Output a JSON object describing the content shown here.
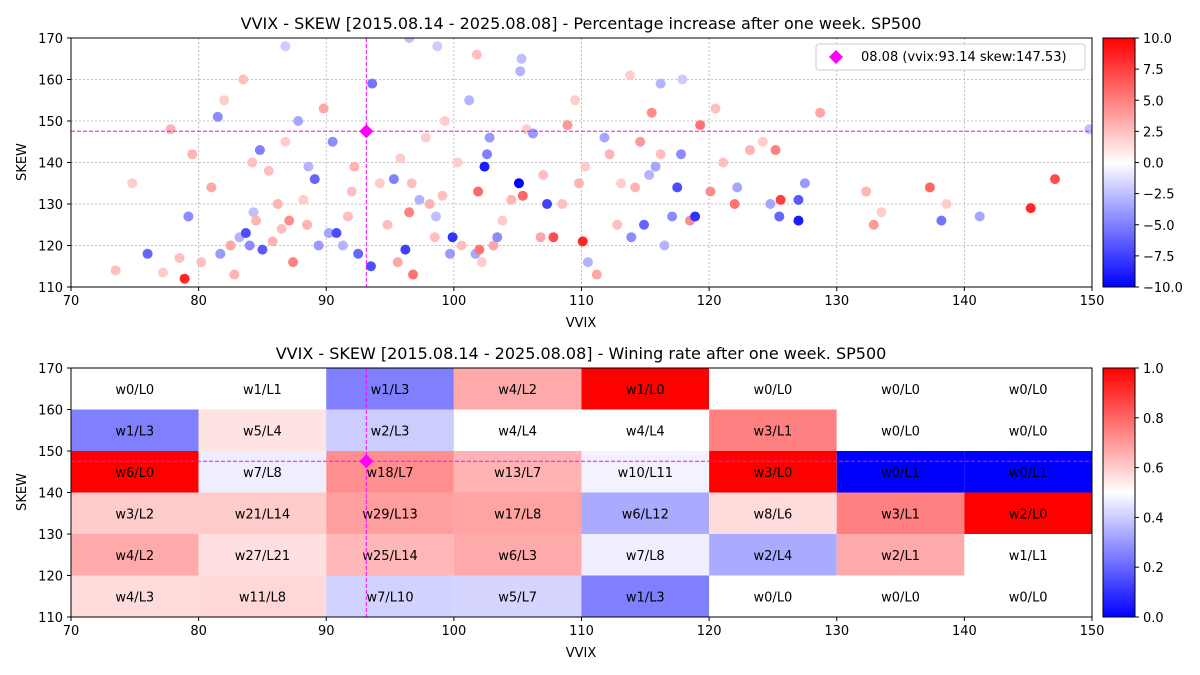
{
  "chart_data": [
    {
      "type": "scatter",
      "title": "VVIX - SKEW [2015.08.14 - 2025.08.08]  - Percentage increase after one week. SP500",
      "xlabel": "VVIX",
      "ylabel": "SKEW",
      "xlim": [
        70,
        150
      ],
      "ylim": [
        110,
        170
      ],
      "x_ticks": [
        70,
        80,
        90,
        100,
        110,
        120,
        130,
        140,
        150
      ],
      "y_ticks": [
        110,
        120,
        130,
        140,
        150,
        160,
        170
      ],
      "grid": true,
      "legend": {
        "position": "top-right",
        "label": "08.08 (vvix:93.14 skew:147.53)"
      },
      "current_point": {
        "x": 93.14,
        "y": 147.53,
        "color": "#ff00ff",
        "marker": "diamond"
      },
      "colorbar": {
        "min": -10,
        "max": 10,
        "cmap": "bwr",
        "ticks": [
          "10.0",
          "7.5",
          "5.0",
          "2.5",
          "0.0",
          "−2.5",
          "−5.0",
          "−7.5",
          "−10.0"
        ]
      },
      "points": [
        [
          73.5,
          114,
          2.5
        ],
        [
          74.8,
          135,
          2.0
        ],
        [
          76,
          118,
          -6.0
        ],
        [
          77.2,
          113.5,
          2.0
        ],
        [
          77.8,
          148,
          3.0
        ],
        [
          78.5,
          117,
          2.5
        ],
        [
          78.9,
          112,
          8.5
        ],
        [
          79.2,
          127,
          -4.5
        ],
        [
          79.5,
          142,
          3.0
        ],
        [
          80.2,
          116,
          2.5
        ],
        [
          81,
          134,
          3.5
        ],
        [
          81.5,
          151,
          -4.5
        ],
        [
          81.7,
          118,
          -4.0
        ],
        [
          82,
          155,
          2.0
        ],
        [
          82.5,
          120,
          3.5
        ],
        [
          82.8,
          113,
          3.0
        ],
        [
          83.2,
          122,
          -3.0
        ],
        [
          83.5,
          160,
          2.5
        ],
        [
          83.7,
          123,
          -7.0
        ],
        [
          84,
          120,
          -4.5
        ],
        [
          84.3,
          128,
          -2.5
        ],
        [
          84.5,
          126,
          3.0
        ],
        [
          84.8,
          143,
          -5.0
        ],
        [
          85,
          119,
          -6.5
        ],
        [
          85.5,
          138,
          2.5
        ],
        [
          85.8,
          121,
          3.0
        ],
        [
          86.2,
          130,
          3.0
        ],
        [
          86.5,
          124,
          2.5
        ],
        [
          86.8,
          145,
          2.0
        ],
        [
          87.1,
          126,
          4.5
        ],
        [
          87.4,
          116,
          5.0
        ],
        [
          87.8,
          150,
          -3.5
        ],
        [
          88.2,
          131,
          2.0
        ],
        [
          88.6,
          139,
          -3.0
        ],
        [
          89.1,
          136,
          -6.0
        ],
        [
          89.4,
          120,
          -4.0
        ],
        [
          89.8,
          153,
          3.5
        ],
        [
          90.2,
          123,
          -3.5
        ],
        [
          90.5,
          145,
          -4.5
        ],
        [
          90.8,
          123,
          -7.0
        ],
        [
          91.3,
          120,
          -3.0
        ],
        [
          91.7,
          127,
          2.5
        ],
        [
          92.2,
          139,
          3.0
        ],
        [
          92.5,
          118,
          -6.0
        ],
        [
          93.5,
          115,
          -7.0
        ],
        [
          93.6,
          159,
          -5.5
        ],
        [
          94.2,
          135,
          2.0
        ],
        [
          94.8,
          125,
          2.5
        ],
        [
          95.3,
          136,
          -5.0
        ],
        [
          95.6,
          116,
          3.5
        ],
        [
          96.2,
          119,
          -7.5
        ],
        [
          96.5,
          128,
          5.0
        ],
        [
          96.7,
          135,
          2.5
        ],
        [
          96.8,
          113,
          5.5
        ],
        [
          97.3,
          131,
          -3.0
        ],
        [
          97.8,
          146,
          2.0
        ],
        [
          98.1,
          130,
          3.0
        ],
        [
          98.6,
          127,
          -2.5
        ],
        [
          99.1,
          132,
          2.5
        ],
        [
          99.3,
          150,
          2.0
        ],
        [
          99.7,
          118,
          -4.0
        ],
        [
          99.9,
          122,
          -8.0
        ],
        [
          100.3,
          140,
          2.0
        ],
        [
          100.6,
          120,
          2.5
        ],
        [
          101.2,
          155,
          -3.0
        ],
        [
          101.7,
          118,
          -3.5
        ],
        [
          101.9,
          133,
          6.0
        ],
        [
          102,
          119,
          5.5
        ],
        [
          102.2,
          116,
          2.0
        ],
        [
          102.4,
          139,
          -9.0
        ],
        [
          102.6,
          142,
          -5.0
        ],
        [
          102.8,
          146,
          -4.0
        ],
        [
          103.1,
          120,
          3.5
        ],
        [
          103.4,
          122,
          -4.5
        ],
        [
          104.5,
          131,
          3.0
        ],
        [
          105.1,
          135,
          -10.0
        ],
        [
          105.4,
          132,
          6.0
        ],
        [
          105.7,
          148,
          2.0
        ],
        [
          106.2,
          147,
          -4.0
        ],
        [
          106.8,
          122,
          3.5
        ],
        [
          107.3,
          130,
          -7.5
        ],
        [
          107.8,
          122,
          7.0
        ],
        [
          108.5,
          130,
          2.5
        ],
        [
          108.9,
          149,
          4.0
        ],
        [
          109.5,
          155,
          2.0
        ],
        [
          109.8,
          135,
          3.0
        ],
        [
          110.1,
          121,
          8.5
        ],
        [
          110.5,
          116,
          -3.0
        ],
        [
          111.2,
          113,
          3.5
        ],
        [
          111.8,
          146,
          -3.5
        ],
        [
          112.2,
          142,
          3.0
        ],
        [
          113.1,
          135,
          2.0
        ],
        [
          113.9,
          122,
          -4.5
        ],
        [
          114.2,
          134,
          3.0
        ],
        [
          114.6,
          145,
          4.0
        ],
        [
          114.9,
          125,
          -6.0
        ],
        [
          115.5,
          152,
          4.5
        ],
        [
          115.8,
          139,
          -3.5
        ],
        [
          116.2,
          142,
          2.5
        ],
        [
          116.5,
          120,
          -3.0
        ],
        [
          117.1,
          127,
          -4.5
        ],
        [
          117.5,
          134,
          -7.0
        ],
        [
          117.8,
          142,
          -4.5
        ],
        [
          118.5,
          126,
          4.5
        ],
        [
          118.9,
          127,
          -8.0
        ],
        [
          119.3,
          149,
          5.5
        ],
        [
          120.1,
          133,
          4.5
        ],
        [
          120.5,
          153,
          2.5
        ],
        [
          122,
          130,
          5.5
        ],
        [
          122.2,
          134,
          -3.5
        ],
        [
          123.2,
          143,
          3.0
        ],
        [
          124.2,
          145,
          2.0
        ],
        [
          124.8,
          130,
          -3.5
        ],
        [
          125.2,
          143,
          5.0
        ],
        [
          125.5,
          127,
          -6.0
        ],
        [
          125.6,
          131,
          7.5
        ],
        [
          127,
          126,
          -9.0
        ],
        [
          127,
          131,
          -6.5
        ],
        [
          127.5,
          135,
          -4.0
        ],
        [
          128.7,
          152,
          3.5
        ],
        [
          132.3,
          133,
          3.0
        ],
        [
          132.9,
          125,
          4.0
        ],
        [
          133.5,
          128,
          2.0
        ],
        [
          137.3,
          134,
          6.0
        ],
        [
          138.2,
          126,
          -5.5
        ],
        [
          138.6,
          130,
          2.0
        ],
        [
          141.2,
          127,
          -3.5
        ],
        [
          145.2,
          129,
          8.5
        ],
        [
          147.1,
          136,
          7.0
        ],
        [
          149.8,
          148,
          -2.5
        ],
        [
          86.8,
          168,
          -2.0
        ],
        [
          96.5,
          170,
          -2.5
        ],
        [
          98.7,
          168,
          -2.0
        ],
        [
          101.8,
          166,
          2.5
        ],
        [
          105.2,
          162,
          -3.0
        ],
        [
          113.8,
          161,
          2.0
        ],
        [
          116.2,
          159,
          -3.0
        ],
        [
          117.9,
          160,
          -2.0
        ],
        [
          105.3,
          165,
          -2.5
        ],
        [
          84.2,
          140,
          2.5
        ],
        [
          88.5,
          125,
          3.0
        ],
        [
          92.0,
          133,
          2.5
        ],
        [
          95.8,
          141,
          2.0
        ],
        [
          98.5,
          122,
          2.5
        ],
        [
          103.8,
          126,
          2.0
        ],
        [
          107.0,
          137,
          2.5
        ],
        [
          110.3,
          139,
          2.0
        ],
        [
          112.8,
          125,
          2.5
        ],
        [
          115.3,
          137,
          -3.0
        ],
        [
          121.1,
          140,
          2.5
        ]
      ]
    },
    {
      "type": "heatmap",
      "title": "VVIX - SKEW [2015.08.14 - 2025.08.08]  - Wining rate after one week. SP500",
      "xlabel": "VVIX",
      "ylabel": "SKEW",
      "xlim": [
        70,
        150
      ],
      "ylim": [
        110,
        170
      ],
      "x_ticks": [
        70,
        80,
        90,
        100,
        110,
        120,
        130,
        140,
        150
      ],
      "y_ticks": [
        110,
        120,
        130,
        140,
        150,
        160,
        170
      ],
      "x_edges": [
        70,
        80,
        90,
        100,
        110,
        120,
        130,
        140,
        150
      ],
      "y_edges": [
        170,
        160,
        150,
        140,
        130,
        120,
        110
      ],
      "current_point": {
        "x": 93.14,
        "y": 147.53,
        "color": "#ff00ff",
        "marker": "diamond"
      },
      "colorbar": {
        "min": 0,
        "max": 1,
        "cmap": "bwr",
        "ticks": [
          "1.0",
          "0.8",
          "0.6",
          "0.4",
          "0.2",
          "0.0"
        ]
      },
      "cells": [
        [
          "w0/L0",
          "w1/L1",
          "w1/L3",
          "w4/L2",
          "w1/L0",
          "w0/L0",
          "w0/L0",
          "w0/L0"
        ],
        [
          "w1/L3",
          "w5/L4",
          "w2/L3",
          "w4/L4",
          "w4/L4",
          "w3/L1",
          "w0/L0",
          "w0/L0"
        ],
        [
          "w6/L0",
          "w7/L8",
          "w18/L7",
          "w13/L7",
          "w10/L11",
          "w3/L0",
          "w0/L1",
          "w0/L1"
        ],
        [
          "w3/L2",
          "w21/L14",
          "w29/L13",
          "w17/L8",
          "w6/L12",
          "w8/L6",
          "w3/L1",
          "w2/L0"
        ],
        [
          "w4/L2",
          "w27/L21",
          "w25/L14",
          "w6/L3",
          "w7/L8",
          "w2/L4",
          "w2/L1",
          "w1/L1"
        ],
        [
          "w4/L3",
          "w11/L8",
          "w7/L10",
          "w5/L7",
          "w1/L3",
          "w0/L0",
          "w0/L0",
          "w0/L0"
        ]
      ]
    }
  ]
}
